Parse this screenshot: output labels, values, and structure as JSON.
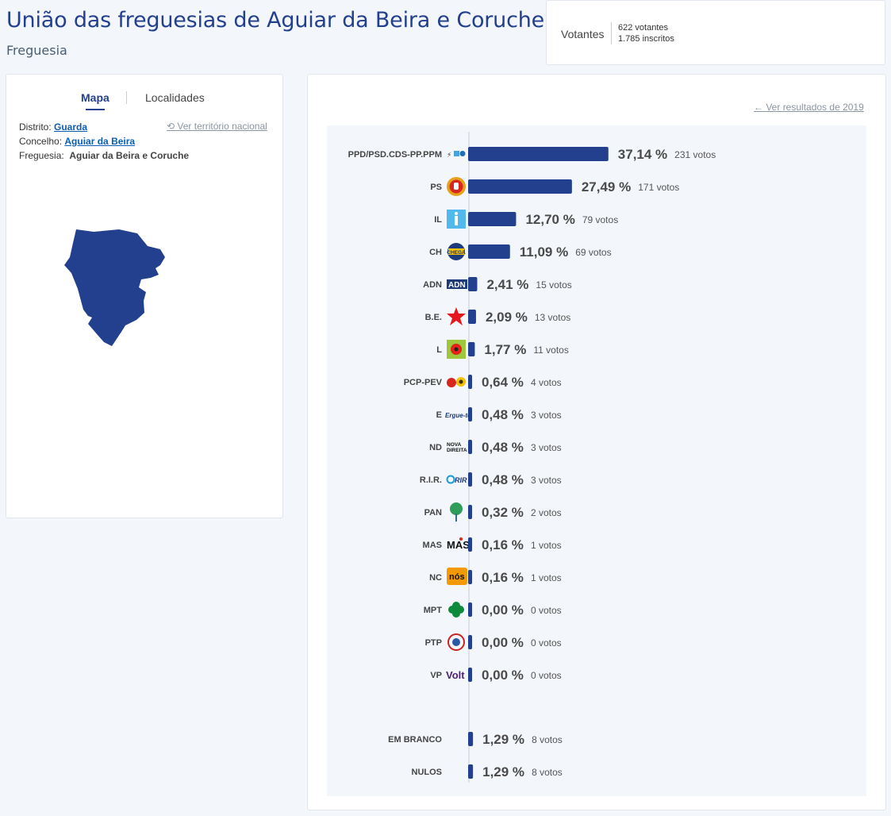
{
  "header": {
    "title": "União das freguesias de Aguiar da Beira e Coruche",
    "subtitle": "Freguesia"
  },
  "voters": {
    "label": "Votantes",
    "votantes": "622 votantes",
    "inscritos": "1.785 inscritos"
  },
  "tabs": {
    "map": "Mapa",
    "localities": "Localidades"
  },
  "location": {
    "distrito_label": "Distrito:",
    "distrito": "Guarda",
    "concelho_label": "Concelho:",
    "concelho": "Aguiar da Beira",
    "freguesia_label": "Freguesia:",
    "freguesia": "Aguiar da Beira e Coruche",
    "national_link": "Ver território nacional"
  },
  "results": {
    "back_link": "Ver resultados de 2019"
  },
  "colors": {
    "bar": "#23408e",
    "title": "#23408e",
    "map": "#23408e",
    "link": "#0a5fb4",
    "panel": "#f3f6fa"
  },
  "chart_data": {
    "type": "bar",
    "orientation": "horizontal",
    "categories": [
      "PPD/PSD.CDS-PP.PPM",
      "PS",
      "IL",
      "CH",
      "ADN",
      "B.E.",
      "L",
      "PCP-PEV",
      "E",
      "ND",
      "R.I.R.",
      "PAN",
      "MAS",
      "NC",
      "MPT",
      "PTP",
      "VP",
      "EM BRANCO",
      "NULOS"
    ],
    "series": [
      {
        "values": [
          37.14,
          27.49,
          12.7,
          11.09,
          2.41,
          2.09,
          1.77,
          0.64,
          0.48,
          0.48,
          0.48,
          0.32,
          0.16,
          0.16,
          0.0,
          0.0,
          0.0,
          1.29,
          1.29
        ],
        "labels": [
          "37,14 %",
          "27,49 %",
          "12,70 %",
          "11,09 %",
          "2,41 %",
          "2,09 %",
          "1,77 %",
          "0,64 %",
          "0,48 %",
          "0,48 %",
          "0,48 %",
          "0,32 %",
          "0,16 %",
          "0,16 %",
          "0,00 %",
          "0,00 %",
          "0,00 %",
          "1,29 %",
          "1,29 %"
        ],
        "votes": [
          "231 votos",
          "171 votos",
          "79 votos",
          "69 votos",
          "15 votos",
          "13 votos",
          "11 votos",
          "4 votos",
          "3 votos",
          "3 votos",
          "3 votos",
          "2 votos",
          "1 votos",
          "1 votos",
          "0 votos",
          "0 votos",
          "0 votos",
          "8 votos",
          "8 votos"
        ]
      }
    ],
    "logos": [
      "psd-cds-ppm-logo-icon",
      "ps-fist-rose-icon",
      "il-logo-icon",
      "chega-logo-icon",
      "adn-logo-icon",
      "be-star-icon",
      "livre-poppy-icon",
      "pcp-pev-logo-icon",
      "ergue-te-logo-icon",
      "nova-direita-logo-icon",
      "rir-logo-icon",
      "pan-tree-icon",
      "mas-logo-icon",
      "nc-logo-icon",
      "mpt-clover-icon",
      "ptp-logo-icon",
      "volt-logo-icon",
      "",
      ""
    ],
    "xlabel": "",
    "ylabel": ""
  }
}
